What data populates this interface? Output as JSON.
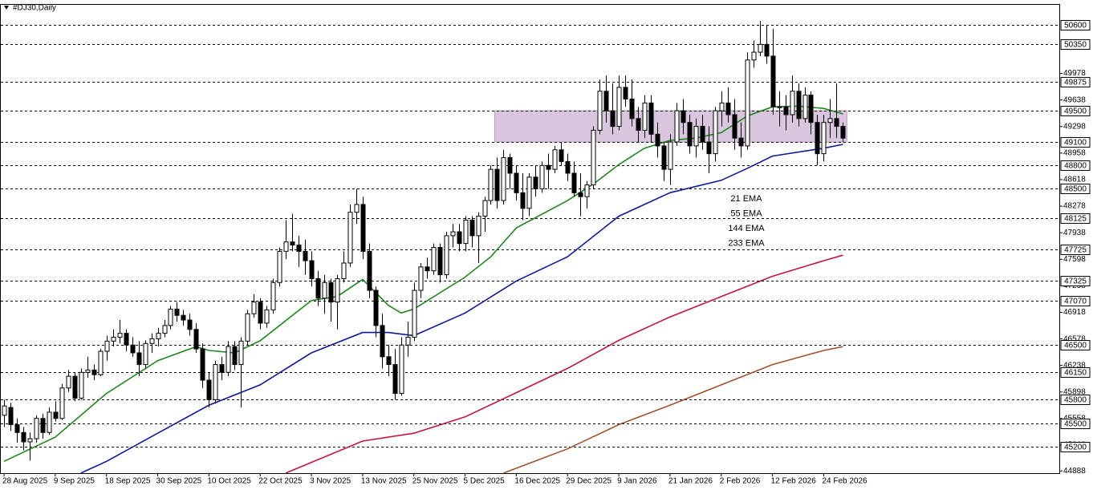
{
  "chart_data": {
    "type": "candlestick",
    "title": "#DJ30,Daily",
    "categories": [
      "28 Aug 2025",
      null,
      null,
      null,
      null,
      null,
      null,
      null,
      "9 Sep 2025",
      null,
      null,
      null,
      null,
      null,
      null,
      null,
      "18 Sep 2025",
      null,
      null,
      null,
      null,
      null,
      null,
      null,
      "30 Sep 2025",
      null,
      null,
      null,
      null,
      null,
      null,
      null,
      "10 Oct 2025",
      null,
      null,
      null,
      null,
      null,
      null,
      null,
      "22 Oct 2025",
      null,
      null,
      null,
      null,
      null,
      null,
      null,
      "3 Nov 2025",
      null,
      null,
      null,
      null,
      null,
      null,
      null,
      "13 Nov 2025",
      null,
      null,
      null,
      null,
      null,
      null,
      null,
      "25 Nov 2025",
      null,
      null,
      null,
      null,
      null,
      null,
      null,
      "5 Dec 2025",
      null,
      null,
      null,
      null,
      null,
      null,
      null,
      "16 Dec 2025",
      null,
      null,
      null,
      null,
      null,
      null,
      null,
      "29 Dec 2025",
      null,
      null,
      null,
      null,
      null,
      null,
      null,
      "9 Jan 2026",
      null,
      null,
      null,
      null,
      null,
      null,
      null,
      "21 Jan 2026",
      null,
      null,
      null,
      null,
      null,
      null,
      null,
      "2 Feb 2026",
      null,
      null,
      null,
      null,
      null,
      null,
      null,
      "12 Feb 2026",
      null,
      null,
      null,
      null,
      null,
      null,
      null,
      "24 Feb 2026",
      null,
      null,
      null
    ],
    "open": [
      45600,
      45700,
      45480,
      45380,
      45260,
      45300,
      45560,
      45380,
      45640,
      45560,
      45950,
      46100,
      45820,
      46150,
      46180,
      46120,
      46420,
      46550,
      46600,
      46650,
      46500,
      46400,
      46250,
      46520,
      46580,
      46650,
      46750,
      46960,
      46880,
      46820,
      46700,
      46450,
      46050,
      45800,
      46250,
      46150,
      46480,
      46250,
      46550,
      46900,
      47050,
      46780,
      46950,
      47300,
      47700,
      47820,
      47780,
      47700,
      47580,
      47350,
      47100,
      47300,
      47050,
      47350,
      47550,
      48200,
      48300,
      47700,
      47200,
      46750,
      46350,
      46250,
      45880,
      46500,
      46600,
      47200,
      47500,
      47450,
      47750,
      47400,
      47900,
      47950,
      47800,
      48100,
      47900,
      48150,
      48350,
      48750,
      48350,
      48900,
      48700,
      48450,
      48250,
      48650,
      48500,
      48800,
      48750,
      49000,
      48850,
      48700,
      48450,
      48400,
      48550,
      49250,
      49750,
      49500,
      49300,
      49800,
      49650,
      49400,
      49250,
      49600,
      49200,
      49050,
      48750,
      49100,
      49500,
      49350,
      49050,
      49300,
      49100,
      48950,
      49500,
      49600,
      49450,
      49150,
      49050,
      50150,
      50250,
      50350,
      50200,
      49550,
      49550,
      49450,
      49750,
      49400,
      49700,
      49350,
      48950,
      49350,
      49400,
      49300
    ],
    "high": [
      45800,
      45760,
      45560,
      45450,
      45380,
      45600,
      45620,
      45700,
      45780,
      46000,
      46180,
      46150,
      46200,
      46350,
      46250,
      46450,
      46620,
      46700,
      46820,
      46700,
      46600,
      46550,
      46560,
      46650,
      46720,
      46820,
      47000,
      47050,
      46950,
      46900,
      46780,
      46520,
      46150,
      46300,
      46350,
      46550,
      46550,
      46600,
      46950,
      47150,
      47100,
      47000,
      47350,
      47750,
      48100,
      48180,
      47900,
      47850,
      47700,
      47450,
      47400,
      47350,
      47400,
      47700,
      48300,
      48500,
      48400,
      47800,
      47250,
      46900,
      46500,
      46450,
      46600,
      46800,
      47300,
      47550,
      47620,
      47800,
      47800,
      47950,
      48050,
      48050,
      48150,
      48150,
      48200,
      48400,
      48800,
      48900,
      49000,
      48950,
      48800,
      48700,
      48700,
      48800,
      48850,
      48950,
      49050,
      49100,
      48950,
      48850,
      48700,
      48600,
      49300,
      49900,
      49950,
      49850,
      49950,
      49950,
      49900,
      49550,
      49700,
      49700,
      49350,
      49100,
      49200,
      49600,
      49650,
      49450,
      49400,
      49450,
      49300,
      49550,
      49750,
      49800,
      49650,
      49350,
      50250,
      50400,
      50650,
      50600,
      50550,
      49750,
      49700,
      49950,
      49850,
      49800,
      49750,
      49450,
      49450,
      49650,
      49850,
      49350
    ],
    "low": [
      45450,
      45400,
      45250,
      45150,
      45020,
      45250,
      45300,
      45350,
      45520,
      45540,
      45900,
      45780,
      45800,
      46080,
      46050,
      46100,
      46300,
      46480,
      46520,
      46420,
      46350,
      46100,
      46200,
      46400,
      46480,
      46600,
      46700,
      46800,
      46750,
      46620,
      46400,
      45950,
      45700,
      45750,
      46050,
      46100,
      46180,
      45700,
      46500,
      46850,
      46700,
      46720,
      46900,
      47250,
      47600,
      47700,
      47500,
      47400,
      47250,
      47000,
      46900,
      46800,
      46700,
      47300,
      47500,
      48050,
      47600,
      47100,
      46600,
      46200,
      46100,
      45800,
      45850,
      46350,
      46550,
      47100,
      47350,
      47400,
      47300,
      47350,
      47750,
      47700,
      47700,
      47750,
      47550,
      47950,
      48300,
      48250,
      48300,
      48500,
      48350,
      48100,
      48150,
      48400,
      48450,
      48500,
      48700,
      48800,
      48600,
      48400,
      48150,
      48250,
      48500,
      49200,
      49350,
      49200,
      49250,
      49550,
      49300,
      49100,
      49150,
      49100,
      48900,
      48600,
      48550,
      49050,
      49200,
      48950,
      48900,
      49000,
      48700,
      48850,
      49300,
      49350,
      49000,
      48900,
      49000,
      50050,
      50200,
      50100,
      49450,
      49300,
      49250,
      49350,
      49300,
      49350,
      49200,
      48800,
      48850,
      49150,
      49150,
      49100
    ],
    "close": [
      45720,
      45480,
      45380,
      45260,
      45300,
      45560,
      45380,
      45640,
      45560,
      45950,
      46100,
      45820,
      46150,
      46180,
      46120,
      46420,
      46550,
      46600,
      46650,
      46500,
      46400,
      46250,
      46520,
      46580,
      46650,
      46750,
      46960,
      46880,
      46820,
      46700,
      46450,
      46050,
      45800,
      46250,
      46150,
      46480,
      46250,
      46550,
      46900,
      47050,
      46780,
      46950,
      47300,
      47700,
      47820,
      47780,
      47700,
      47580,
      47350,
      47100,
      47300,
      47050,
      47350,
      47550,
      48200,
      48300,
      47700,
      47200,
      46750,
      46350,
      46250,
      45880,
      46500,
      46600,
      47200,
      47500,
      47450,
      47750,
      47400,
      47900,
      47950,
      47800,
      48100,
      47900,
      48150,
      48350,
      48750,
      48350,
      48900,
      48700,
      48450,
      48250,
      48650,
      48500,
      48800,
      48750,
      49000,
      48850,
      48700,
      48450,
      48400,
      48550,
      49250,
      49750,
      49500,
      49300,
      49800,
      49650,
      49400,
      49250,
      49600,
      49200,
      49050,
      48750,
      49100,
      49500,
      49350,
      49050,
      49300,
      49100,
      48950,
      49500,
      49600,
      49450,
      49150,
      49050,
      50150,
      50250,
      50350,
      50200,
      49550,
      49550,
      49450,
      49750,
      49400,
      49700,
      49350,
      48950,
      49350,
      49400,
      49300,
      49150
    ],
    "series": [
      {
        "name": "21 EMA",
        "color": "#1a8a1a",
        "x": [
          0,
          8,
          16,
          24,
          30,
          32,
          36,
          40,
          48,
          52,
          56,
          60,
          62,
          64,
          72,
          76,
          80,
          88,
          92,
          96,
          100,
          104,
          108,
          112,
          116,
          120,
          124,
          128,
          131
        ],
        "values": [
          45010,
          45320,
          45880,
          46300,
          46480,
          46430,
          46400,
          46555,
          47070,
          47120,
          47340,
          47010,
          46910,
          46960,
          47370,
          47630,
          48000,
          48350,
          48560,
          48810,
          49020,
          49120,
          49150,
          49220,
          49430,
          49550,
          49560,
          49530,
          49460
        ]
      },
      {
        "name": "55 EMA",
        "color": "#0a1a9c",
        "x": [
          12,
          16,
          24,
          32,
          40,
          48,
          56,
          60,
          64,
          72,
          80,
          88,
          96,
          104,
          112,
          116,
          120,
          128,
          131
        ],
        "values": [
          44860,
          45010,
          45370,
          45730,
          45990,
          46400,
          46660,
          46660,
          46620,
          46910,
          47320,
          47630,
          48150,
          48450,
          48610,
          48760,
          48920,
          49020,
          49070
        ]
      },
      {
        "name": "144 EMA",
        "color": "#c4133f",
        "x": [
          44,
          56,
          64,
          72,
          80,
          88,
          96,
          104,
          112,
          120,
          128,
          131
        ],
        "values": [
          44860,
          45270,
          45370,
          45580,
          45890,
          46200,
          46560,
          46860,
          47120,
          47380,
          47580,
          47650
        ]
      },
      {
        "name": "233 EMA",
        "color": "#a0522d",
        "x": [
          78,
          88,
          96,
          104,
          112,
          120,
          128,
          131
        ],
        "values": [
          44860,
          45170,
          45480,
          45730,
          45990,
          46250,
          46430,
          46480
        ]
      }
    ],
    "zone": {
      "x": [
        77,
        132
      ],
      "y": [
        49100,
        49500
      ],
      "color": "#d9c5dd"
    },
    "levels": [
      50600,
      50350,
      49875,
      49500,
      49100,
      48800,
      48500,
      48125,
      47725,
      47325,
      47070,
      46500,
      46150,
      45800,
      45500,
      45200
    ],
    "ylim": [
      44859,
      50867
    ],
    "yticks": [
      49978,
      49638,
      49298,
      48958,
      48618,
      48278,
      47938,
      47598,
      47258,
      46918,
      46578,
      46238,
      45898,
      45558,
      45218,
      44888
    ],
    "grid": false
  }
}
